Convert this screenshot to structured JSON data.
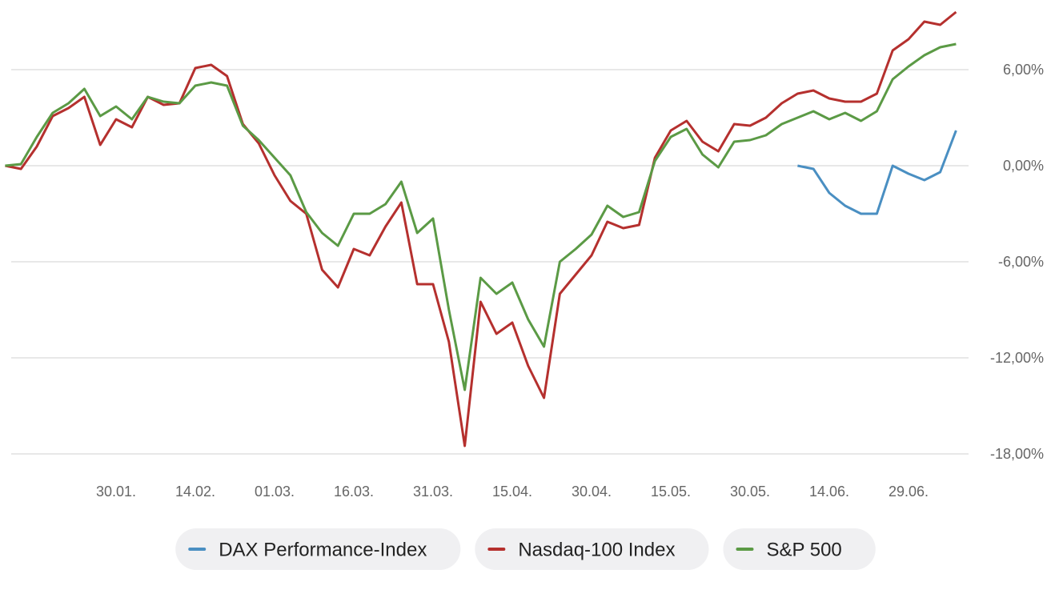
{
  "chart_data": {
    "type": "line",
    "categories": [
      null,
      null,
      null,
      null,
      null,
      null,
      null,
      "30.01.",
      null,
      null,
      null,
      null,
      "14.02.",
      null,
      null,
      null,
      null,
      "01.03.",
      null,
      null,
      null,
      null,
      "16.03.",
      null,
      null,
      null,
      null,
      "31.03.",
      null,
      null,
      null,
      null,
      "15.04.",
      null,
      null,
      null,
      null,
      "30.04.",
      null,
      null,
      null,
      null,
      "15.05.",
      null,
      null,
      null,
      null,
      "30.05.",
      null,
      null,
      null,
      null,
      "14.06.",
      null,
      null,
      null,
      null,
      "29.06.",
      null,
      null,
      null
    ],
    "series": [
      {
        "name": "DAX Performance-Index",
        "color": "#4a8fc2",
        "values": [
          null,
          null,
          null,
          null,
          null,
          null,
          null,
          null,
          null,
          null,
          null,
          null,
          null,
          null,
          null,
          null,
          null,
          null,
          null,
          null,
          null,
          null,
          null,
          null,
          null,
          null,
          null,
          null,
          null,
          null,
          null,
          null,
          null,
          null,
          null,
          null,
          null,
          null,
          null,
          null,
          null,
          null,
          null,
          null,
          null,
          null,
          null,
          null,
          null,
          null,
          0,
          -0.2,
          -1.7,
          -2.5,
          -3.0,
          -3.0,
          0.0,
          -0.5,
          -0.9,
          -0.4,
          2.2
        ]
      },
      {
        "name": "Nasdaq-100 Index",
        "color": "#b5302e",
        "values": [
          0,
          -0.2,
          1.2,
          3.1,
          3.6,
          4.3,
          1.3,
          2.9,
          2.4,
          4.3,
          3.8,
          3.9,
          6.1,
          6.3,
          5.6,
          2.6,
          1.4,
          -0.6,
          -2.2,
          -3.0,
          -6.5,
          -7.6,
          -5.2,
          -5.6,
          -3.8,
          -2.3,
          -7.4,
          -7.4,
          -11.0,
          -17.5,
          -8.5,
          -10.5,
          -9.8,
          -12.5,
          -14.5,
          -8.0,
          -6.8,
          -5.6,
          -3.5,
          -3.9,
          -3.7,
          0.5,
          2.2,
          2.8,
          1.5,
          0.9,
          2.6,
          2.5,
          3.0,
          3.9,
          4.5,
          4.7,
          4.2,
          4.0,
          4.0,
          4.5,
          7.2,
          7.9,
          9.0,
          8.8,
          9.6
        ]
      },
      {
        "name": "S&P 500",
        "color": "#5b9a45",
        "values": [
          0,
          0.1,
          1.8,
          3.3,
          3.9,
          4.8,
          3.1,
          3.7,
          2.9,
          4.3,
          4.0,
          3.9,
          5.0,
          5.2,
          5.0,
          2.5,
          1.6,
          0.5,
          -0.6,
          -2.9,
          -4.2,
          -5.0,
          -3.0,
          -3.0,
          -2.4,
          -1.0,
          -4.2,
          -3.3,
          -9.0,
          -14.0,
          -7.0,
          -8.0,
          -7.3,
          -9.6,
          -11.3,
          -6.0,
          -5.2,
          -4.3,
          -2.5,
          -3.2,
          -2.9,
          0.3,
          1.8,
          2.3,
          0.7,
          -0.1,
          1.5,
          1.6,
          1.9,
          2.6,
          3.0,
          3.4,
          2.9,
          3.3,
          2.8,
          3.4,
          5.4,
          6.2,
          6.9,
          7.4,
          7.6
        ]
      }
    ],
    "ylim": [
      -18.6,
      9.8
    ],
    "yticks": [
      {
        "value": -18,
        "label": "-18,00%"
      },
      {
        "value": -12,
        "label": "-12,00%"
      },
      {
        "value": -6,
        "label": "-6,00%"
      },
      {
        "value": 0,
        "label": "0,00%"
      },
      {
        "value": 6,
        "label": "6,00%"
      }
    ],
    "grid": true
  }
}
